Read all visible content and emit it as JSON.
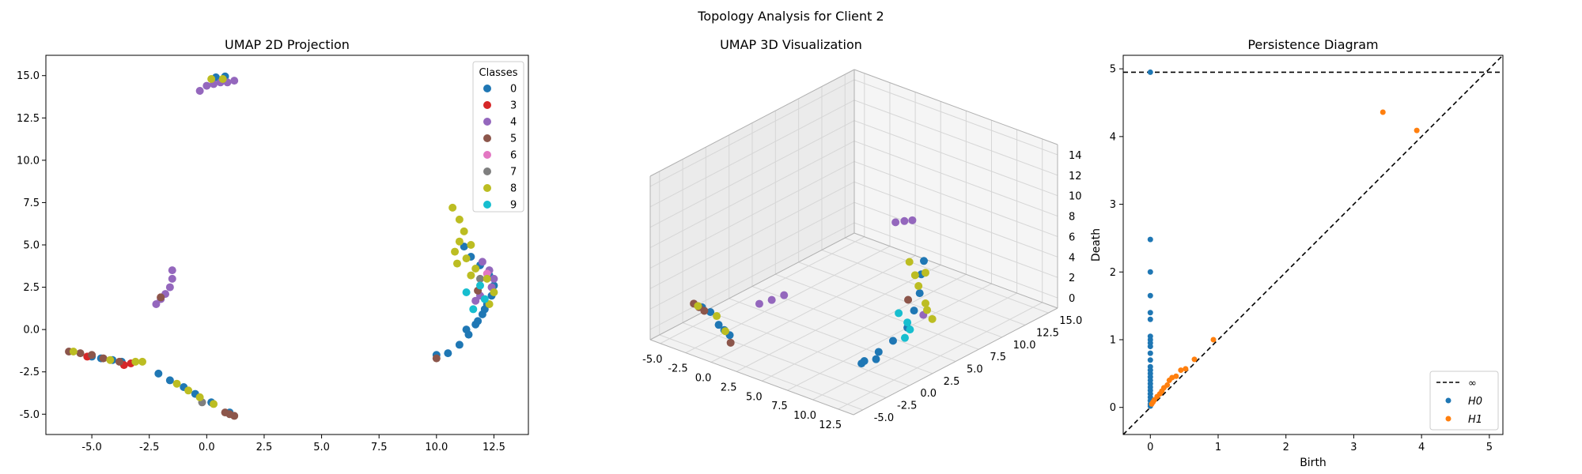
{
  "suptitle": "Topology Analysis for Client 2",
  "colors": {
    "0": "#1f77b4",
    "3": "#d62728",
    "4": "#9467bd",
    "5": "#8c564b",
    "6": "#e377c2",
    "7": "#7f7f7f",
    "8": "#bcbd22",
    "9": "#17becf",
    "h0": "#1f77b4",
    "h1": "#ff7f0e"
  },
  "chart_data": [
    {
      "type": "scatter",
      "title": "UMAP 2D Projection",
      "xlim": [
        -7,
        14
      ],
      "ylim": [
        -6.2,
        16.2
      ],
      "xticks": [
        -5.0,
        -2.5,
        0.0,
        2.5,
        5.0,
        7.5,
        10.0,
        12.5
      ],
      "yticks": [
        -5.0,
        -2.5,
        0.0,
        2.5,
        5.0,
        7.5,
        10.0,
        12.5,
        15.0
      ],
      "legend": {
        "title": "Classes",
        "position": "upper right",
        "entries": [
          "0",
          "3",
          "4",
          "5",
          "6",
          "7",
          "8",
          "9"
        ]
      },
      "series": [
        {
          "name": "0",
          "points": [
            [
              0.4,
              14.9
            ],
            [
              0.8,
              14.95
            ],
            [
              -2.1,
              -2.6
            ],
            [
              -1.6,
              -3.0
            ],
            [
              -1.0,
              -3.4
            ],
            [
              -0.5,
              -3.8
            ],
            [
              0.2,
              -4.3
            ],
            [
              1.0,
              -4.9
            ],
            [
              -5.0,
              -1.6
            ],
            [
              -4.6,
              -1.7
            ],
            [
              -4.1,
              -1.8
            ],
            [
              -3.7,
              -1.9
            ],
            [
              10.0,
              -1.5
            ],
            [
              10.5,
              -1.4
            ],
            [
              11.0,
              -0.9
            ],
            [
              11.4,
              -0.3
            ],
            [
              11.7,
              0.3
            ],
            [
              12.0,
              0.9
            ],
            [
              12.2,
              1.5
            ],
            [
              12.4,
              2.0
            ],
            [
              12.5,
              2.6
            ],
            [
              12.3,
              3.2
            ],
            [
              11.9,
              3.8
            ],
            [
              11.5,
              4.3
            ],
            [
              11.2,
              4.9
            ],
            [
              12.1,
              1.2
            ],
            [
              11.8,
              0.5
            ],
            [
              11.3,
              0.0
            ]
          ]
        },
        {
          "name": "3",
          "points": [
            [
              -3.6,
              -2.1
            ],
            [
              -3.3,
              -2.0
            ],
            [
              -5.2,
              -1.6
            ],
            [
              -2.0,
              1.9
            ]
          ]
        },
        {
          "name": "4",
          "points": [
            [
              -0.3,
              14.1
            ],
            [
              0.0,
              14.4
            ],
            [
              0.3,
              14.5
            ],
            [
              0.6,
              14.6
            ],
            [
              0.9,
              14.6
            ],
            [
              1.2,
              14.7
            ],
            [
              -1.5,
              3.5
            ],
            [
              -1.5,
              3.0
            ],
            [
              -1.6,
              2.5
            ],
            [
              -1.8,
              2.1
            ],
            [
              -2.0,
              1.8
            ],
            [
              -2.2,
              1.5
            ],
            [
              12.0,
              4.0
            ],
            [
              12.3,
              3.5
            ],
            [
              12.5,
              3.0
            ],
            [
              12.4,
              2.5
            ],
            [
              11.9,
              2.0
            ],
            [
              11.7,
              1.7
            ]
          ]
        },
        {
          "name": "5",
          "points": [
            [
              -6.0,
              -1.3
            ],
            [
              -5.5,
              -1.4
            ],
            [
              -5.0,
              -1.5
            ],
            [
              -4.5,
              -1.7
            ],
            [
              -3.8,
              -1.9
            ],
            [
              -2.0,
              1.9
            ],
            [
              1.0,
              -5.0
            ],
            [
              1.2,
              -5.1
            ],
            [
              0.8,
              -4.9
            ],
            [
              10.0,
              -1.7
            ],
            [
              11.8,
              2.3
            ]
          ]
        },
        {
          "name": "6",
          "points": [
            [
              12.2,
              3.3
            ]
          ]
        },
        {
          "name": "7",
          "points": [
            [
              -0.2,
              -4.3
            ],
            [
              11.9,
              3.0
            ]
          ]
        },
        {
          "name": "8",
          "points": [
            [
              -5.8,
              -1.3
            ],
            [
              -4.2,
              -1.8
            ],
            [
              -3.1,
              -1.9
            ],
            [
              -2.8,
              -1.9
            ],
            [
              -1.3,
              -3.2
            ],
            [
              -0.8,
              -3.6
            ],
            [
              -0.3,
              -4.0
            ],
            [
              0.3,
              -4.4
            ],
            [
              0.2,
              14.8
            ],
            [
              0.7,
              14.8
            ],
            [
              10.7,
              7.2
            ],
            [
              11.0,
              6.5
            ],
            [
              11.2,
              5.8
            ],
            [
              11.0,
              5.2
            ],
            [
              10.8,
              4.6
            ],
            [
              11.3,
              4.2
            ],
            [
              11.7,
              3.6
            ],
            [
              12.2,
              3.0
            ],
            [
              12.5,
              2.2
            ],
            [
              12.3,
              1.5
            ],
            [
              11.5,
              3.2
            ],
            [
              10.9,
              3.9
            ],
            [
              11.5,
              5.0
            ]
          ]
        },
        {
          "name": "9",
          "points": [
            [
              11.9,
              2.6
            ],
            [
              12.1,
              1.8
            ],
            [
              11.6,
              1.2
            ],
            [
              11.3,
              2.2
            ]
          ]
        }
      ]
    },
    {
      "type": "scatter",
      "title": "UMAP 3D Visualization",
      "xlim": [
        -6,
        14
      ],
      "ylim": [
        -6,
        16
      ],
      "zlim": [
        -1,
        15
      ],
      "xticks": [
        -5.0,
        -2.5,
        0.0,
        2.5,
        5.0,
        7.5,
        10.0,
        12.5
      ],
      "yticks": [
        -5.0,
        -2.5,
        0.0,
        2.5,
        5.0,
        7.5,
        10.0,
        12.5,
        15.0
      ],
      "zticks": [
        0,
        2,
        4,
        6,
        8,
        10,
        12,
        14
      ],
      "grid": true,
      "series": [
        {
          "name": "0",
          "points": [
            [
              -2.0,
              -3.0,
              0.5
            ],
            [
              -1.0,
              -3.5,
              0.6
            ],
            [
              0.0,
              -4.0,
              0.7
            ],
            [
              -5.0,
              -1.5,
              0.4
            ],
            [
              -4.0,
              -1.7,
              0.4
            ],
            [
              10.5,
              -1.0,
              0.6
            ],
            [
              11.0,
              0.0,
              1.2
            ],
            [
              11.5,
              1.0,
              2.0
            ],
            [
              12.0,
              2.0,
              3.0
            ],
            [
              12.2,
              2.5,
              4.5
            ],
            [
              12.3,
              3.0,
              6.0
            ],
            [
              12.0,
              3.5,
              7.5
            ],
            [
              11.8,
              4.0,
              8.5
            ],
            [
              10.5,
              -1.3,
              0.5
            ],
            [
              11.2,
              -0.5,
              0.8
            ]
          ]
        },
        {
          "name": "4",
          "points": [
            [
              -0.3,
              14.2,
              3.0
            ],
            [
              0.3,
              14.5,
              3.2
            ],
            [
              0.9,
              14.7,
              3.4
            ],
            [
              -1.5,
              3.5,
              0.5
            ],
            [
              -1.8,
              2.5,
              0.4
            ],
            [
              -2.2,
              1.6,
              0.3
            ],
            [
              12.2,
              3.5,
              3.6
            ]
          ]
        },
        {
          "name": "5",
          "points": [
            [
              -6.0,
              -1.3,
              0.3
            ],
            [
              -5.3,
              -1.5,
              0.3
            ],
            [
              -4.6,
              -1.7,
              0.3
            ],
            [
              1.0,
              -5.0,
              0.8
            ],
            [
              11.8,
              2.3,
              5.5
            ]
          ]
        },
        {
          "name": "8",
          "points": [
            [
              -5.5,
              -1.4,
              0.3
            ],
            [
              -3.2,
              -1.9,
              0.4
            ],
            [
              -0.8,
              -3.6,
              0.6
            ],
            [
              10.8,
              6.0,
              1.5
            ],
            [
              11.2,
              5.0,
              3.0
            ],
            [
              11.5,
              4.5,
              4.0
            ],
            [
              12.0,
              3.2,
              6.5
            ],
            [
              12.3,
              2.5,
              8.0
            ],
            [
              12.2,
              2.0,
              9.5
            ],
            [
              11.5,
              4.5,
              7.0
            ]
          ]
        },
        {
          "name": "9",
          "points": [
            [
              11.8,
              2.5,
              2.5
            ],
            [
              12.0,
              2.0,
              3.5
            ],
            [
              11.6,
              1.5,
              4.5
            ],
            [
              11.3,
              2.5,
              1.5
            ]
          ]
        }
      ]
    },
    {
      "type": "scatter",
      "title": "Persistence Diagram",
      "xlabel": "Birth",
      "ylabel": "Death",
      "xlim": [
        -0.4,
        5.2
      ],
      "ylim": [
        -0.4,
        5.2
      ],
      "xticks": [
        0,
        1,
        2,
        3,
        4,
        5
      ],
      "yticks": [
        0,
        1,
        2,
        3,
        4,
        5
      ],
      "infinity": 4.95,
      "legend": {
        "position": "lower right",
        "entries": [
          "∞",
          "H0",
          "H1"
        ]
      },
      "series": [
        {
          "name": "H0",
          "points": [
            [
              0,
              4.95
            ],
            [
              0,
              2.48
            ],
            [
              0,
              2.0
            ],
            [
              0,
              1.65
            ],
            [
              0,
              1.4
            ],
            [
              0,
              1.3
            ],
            [
              0,
              1.05
            ],
            [
              0,
              1.0
            ],
            [
              0,
              0.95
            ],
            [
              0,
              0.9
            ],
            [
              0,
              0.8
            ],
            [
              0,
              0.7
            ],
            [
              0,
              0.6
            ],
            [
              0,
              0.55
            ],
            [
              0,
              0.5
            ],
            [
              0,
              0.45
            ],
            [
              0,
              0.4
            ],
            [
              0,
              0.35
            ],
            [
              0,
              0.3
            ],
            [
              0,
              0.25
            ],
            [
              0,
              0.2
            ],
            [
              0,
              0.15
            ],
            [
              0,
              0.1
            ],
            [
              0,
              0.05
            ],
            [
              0,
              0.02
            ]
          ]
        },
        {
          "name": "H1",
          "points": [
            [
              3.43,
              4.36
            ],
            [
              3.93,
              4.09
            ],
            [
              0.93,
              1.0
            ],
            [
              0.65,
              0.71
            ],
            [
              0.52,
              0.57
            ],
            [
              0.45,
              0.55
            ],
            [
              0.38,
              0.46
            ],
            [
              0.32,
              0.44
            ],
            [
              0.28,
              0.4
            ],
            [
              0.25,
              0.33
            ],
            [
              0.2,
              0.29
            ],
            [
              0.17,
              0.24
            ],
            [
              0.14,
              0.2
            ],
            [
              0.1,
              0.16
            ],
            [
              0.06,
              0.11
            ],
            [
              0.04,
              0.08
            ],
            [
              0.02,
              0.05
            ]
          ]
        }
      ]
    }
  ]
}
